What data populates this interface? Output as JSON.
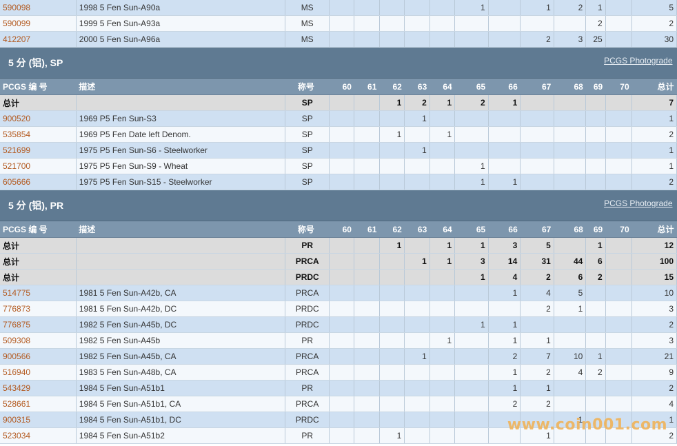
{
  "top_rows": [
    {
      "id": "590098",
      "desc": "1998 5 Fen Sun-A90a",
      "des": "MS",
      "g": [
        "",
        "",
        "",
        "",
        "",
        "1",
        "",
        "1",
        "2",
        "1",
        ""
      ],
      "total": "5"
    },
    {
      "id": "590099",
      "desc": "1999 5 Fen Sun-A93a",
      "des": "MS",
      "g": [
        "",
        "",
        "",
        "",
        "",
        "",
        "",
        "",
        "",
        "2",
        ""
      ],
      "total": "2"
    },
    {
      "id": "412207",
      "desc": "2000 5 Fen Sun-A96a",
      "des": "MS",
      "g": [
        "",
        "",
        "",
        "",
        "",
        "",
        "",
        "2",
        "3",
        "25",
        ""
      ],
      "total": "30"
    }
  ],
  "header": {
    "col_id": "PCGS 编 号",
    "col_desc": "描述",
    "col_des": "称号",
    "grades": [
      "60",
      "61",
      "62",
      "63",
      "64",
      "65",
      "66",
      "67",
      "68",
      "69",
      "70"
    ],
    "col_total": "总计"
  },
  "sections": [
    {
      "title": "5 分 (铝), SP",
      "photograde": "PCGS Photograde",
      "totals": [
        {
          "label": "总计",
          "des": "SP",
          "g": [
            "",
            "",
            "1",
            "2",
            "1",
            "2",
            "1",
            "",
            "",
            "",
            ""
          ],
          "total": "7"
        }
      ],
      "rows": [
        {
          "id": "900520",
          "desc": "1969 P5 Fen Sun-S3",
          "des": "SP",
          "g": [
            "",
            "",
            "",
            "1",
            "",
            "",
            "",
            "",
            "",
            "",
            ""
          ],
          "total": "1"
        },
        {
          "id": "535854",
          "desc": "1969 P5 Fen Date left Denom.",
          "des": "SP",
          "g": [
            "",
            "",
            "1",
            "",
            "1",
            "",
            "",
            "",
            "",
            "",
            ""
          ],
          "total": "2"
        },
        {
          "id": "521699",
          "desc": "1975 P5 Fen Sun-S6 - Steelworker",
          "des": "SP",
          "g": [
            "",
            "",
            "",
            "1",
            "",
            "",
            "",
            "",
            "",
            "",
            ""
          ],
          "total": "1"
        },
        {
          "id": "521700",
          "desc": "1975 P5 Fen Sun-S9 - Wheat",
          "des": "SP",
          "g": [
            "",
            "",
            "",
            "",
            "",
            "1",
            "",
            "",
            "",
            "",
            ""
          ],
          "total": "1"
        },
        {
          "id": "605666",
          "desc": "1975 P5 Fen Sun-S15 - Steelworker",
          "des": "SP",
          "g": [
            "",
            "",
            "",
            "",
            "",
            "1",
            "1",
            "",
            "",
            "",
            ""
          ],
          "total": "2"
        }
      ]
    },
    {
      "title": "5 分 (铝), PR",
      "photograde": "PCGS Photograde",
      "totals": [
        {
          "label": "总计",
          "des": "PR",
          "g": [
            "",
            "",
            "1",
            "",
            "1",
            "1",
            "3",
            "5",
            "",
            "1",
            ""
          ],
          "total": "12"
        },
        {
          "label": "总计",
          "des": "PRCA",
          "g": [
            "",
            "",
            "",
            "1",
            "1",
            "3",
            "14",
            "31",
            "44",
            "6",
            ""
          ],
          "total": "100"
        },
        {
          "label": "总计",
          "des": "PRDC",
          "g": [
            "",
            "",
            "",
            "",
            "",
            "1",
            "4",
            "2",
            "6",
            "2",
            ""
          ],
          "total": "15"
        }
      ],
      "rows": [
        {
          "id": "514775",
          "desc": "1981 5 Fen Sun-A42b, CA",
          "des": "PRCA",
          "g": [
            "",
            "",
            "",
            "",
            "",
            "",
            "1",
            "4",
            "5",
            "",
            ""
          ],
          "total": "10"
        },
        {
          "id": "776873",
          "desc": "1981 5 Fen Sun-A42b, DC",
          "des": "PRDC",
          "g": [
            "",
            "",
            "",
            "",
            "",
            "",
            "",
            "2",
            "1",
            "",
            ""
          ],
          "total": "3"
        },
        {
          "id": "776875",
          "desc": "1982 5 Fen Sun-A45b, DC",
          "des": "PRDC",
          "g": [
            "",
            "",
            "",
            "",
            "",
            "1",
            "1",
            "",
            "",
            "",
            ""
          ],
          "total": "2"
        },
        {
          "id": "509308",
          "desc": "1982 5 Fen Sun-A45b",
          "des": "PR",
          "g": [
            "",
            "",
            "",
            "",
            "1",
            "",
            "1",
            "1",
            "",
            "",
            ""
          ],
          "total": "3"
        },
        {
          "id": "900566",
          "desc": "1982 5 Fen Sun-A45b, CA",
          "des": "PRCA",
          "g": [
            "",
            "",
            "",
            "1",
            "",
            "",
            "2",
            "7",
            "10",
            "1",
            ""
          ],
          "total": "21"
        },
        {
          "id": "516940",
          "desc": "1983 5 Fen Sun-A48b, CA",
          "des": "PRCA",
          "g": [
            "",
            "",
            "",
            "",
            "",
            "",
            "1",
            "2",
            "4",
            "2",
            ""
          ],
          "total": "9"
        },
        {
          "id": "543429",
          "desc": "1984 5 Fen Sun-A51b1",
          "des": "PR",
          "g": [
            "",
            "",
            "",
            "",
            "",
            "",
            "1",
            "1",
            "",
            "",
            ""
          ],
          "total": "2"
        },
        {
          "id": "528661",
          "desc": "1984 5 Fen Sun-A51b1, CA",
          "des": "PRCA",
          "g": [
            "",
            "",
            "",
            "",
            "",
            "",
            "2",
            "2",
            "",
            "",
            ""
          ],
          "total": "4"
        },
        {
          "id": "900315",
          "desc": "1984 5 Fen Sun-A51b1, DC",
          "des": "PRDC",
          "g": [
            "",
            "",
            "",
            "",
            "",
            "",
            "",
            "",
            "1",
            "",
            ""
          ],
          "total": "1"
        },
        {
          "id": "523034",
          "desc": "1984 5 Fen Sun-A51b2",
          "des": "PR",
          "g": [
            "",
            "",
            "1",
            "",
            "",
            "",
            "",
            "1",
            "",
            "",
            ""
          ],
          "total": "2"
        }
      ]
    }
  ],
  "watermark": "www.coin001.com"
}
